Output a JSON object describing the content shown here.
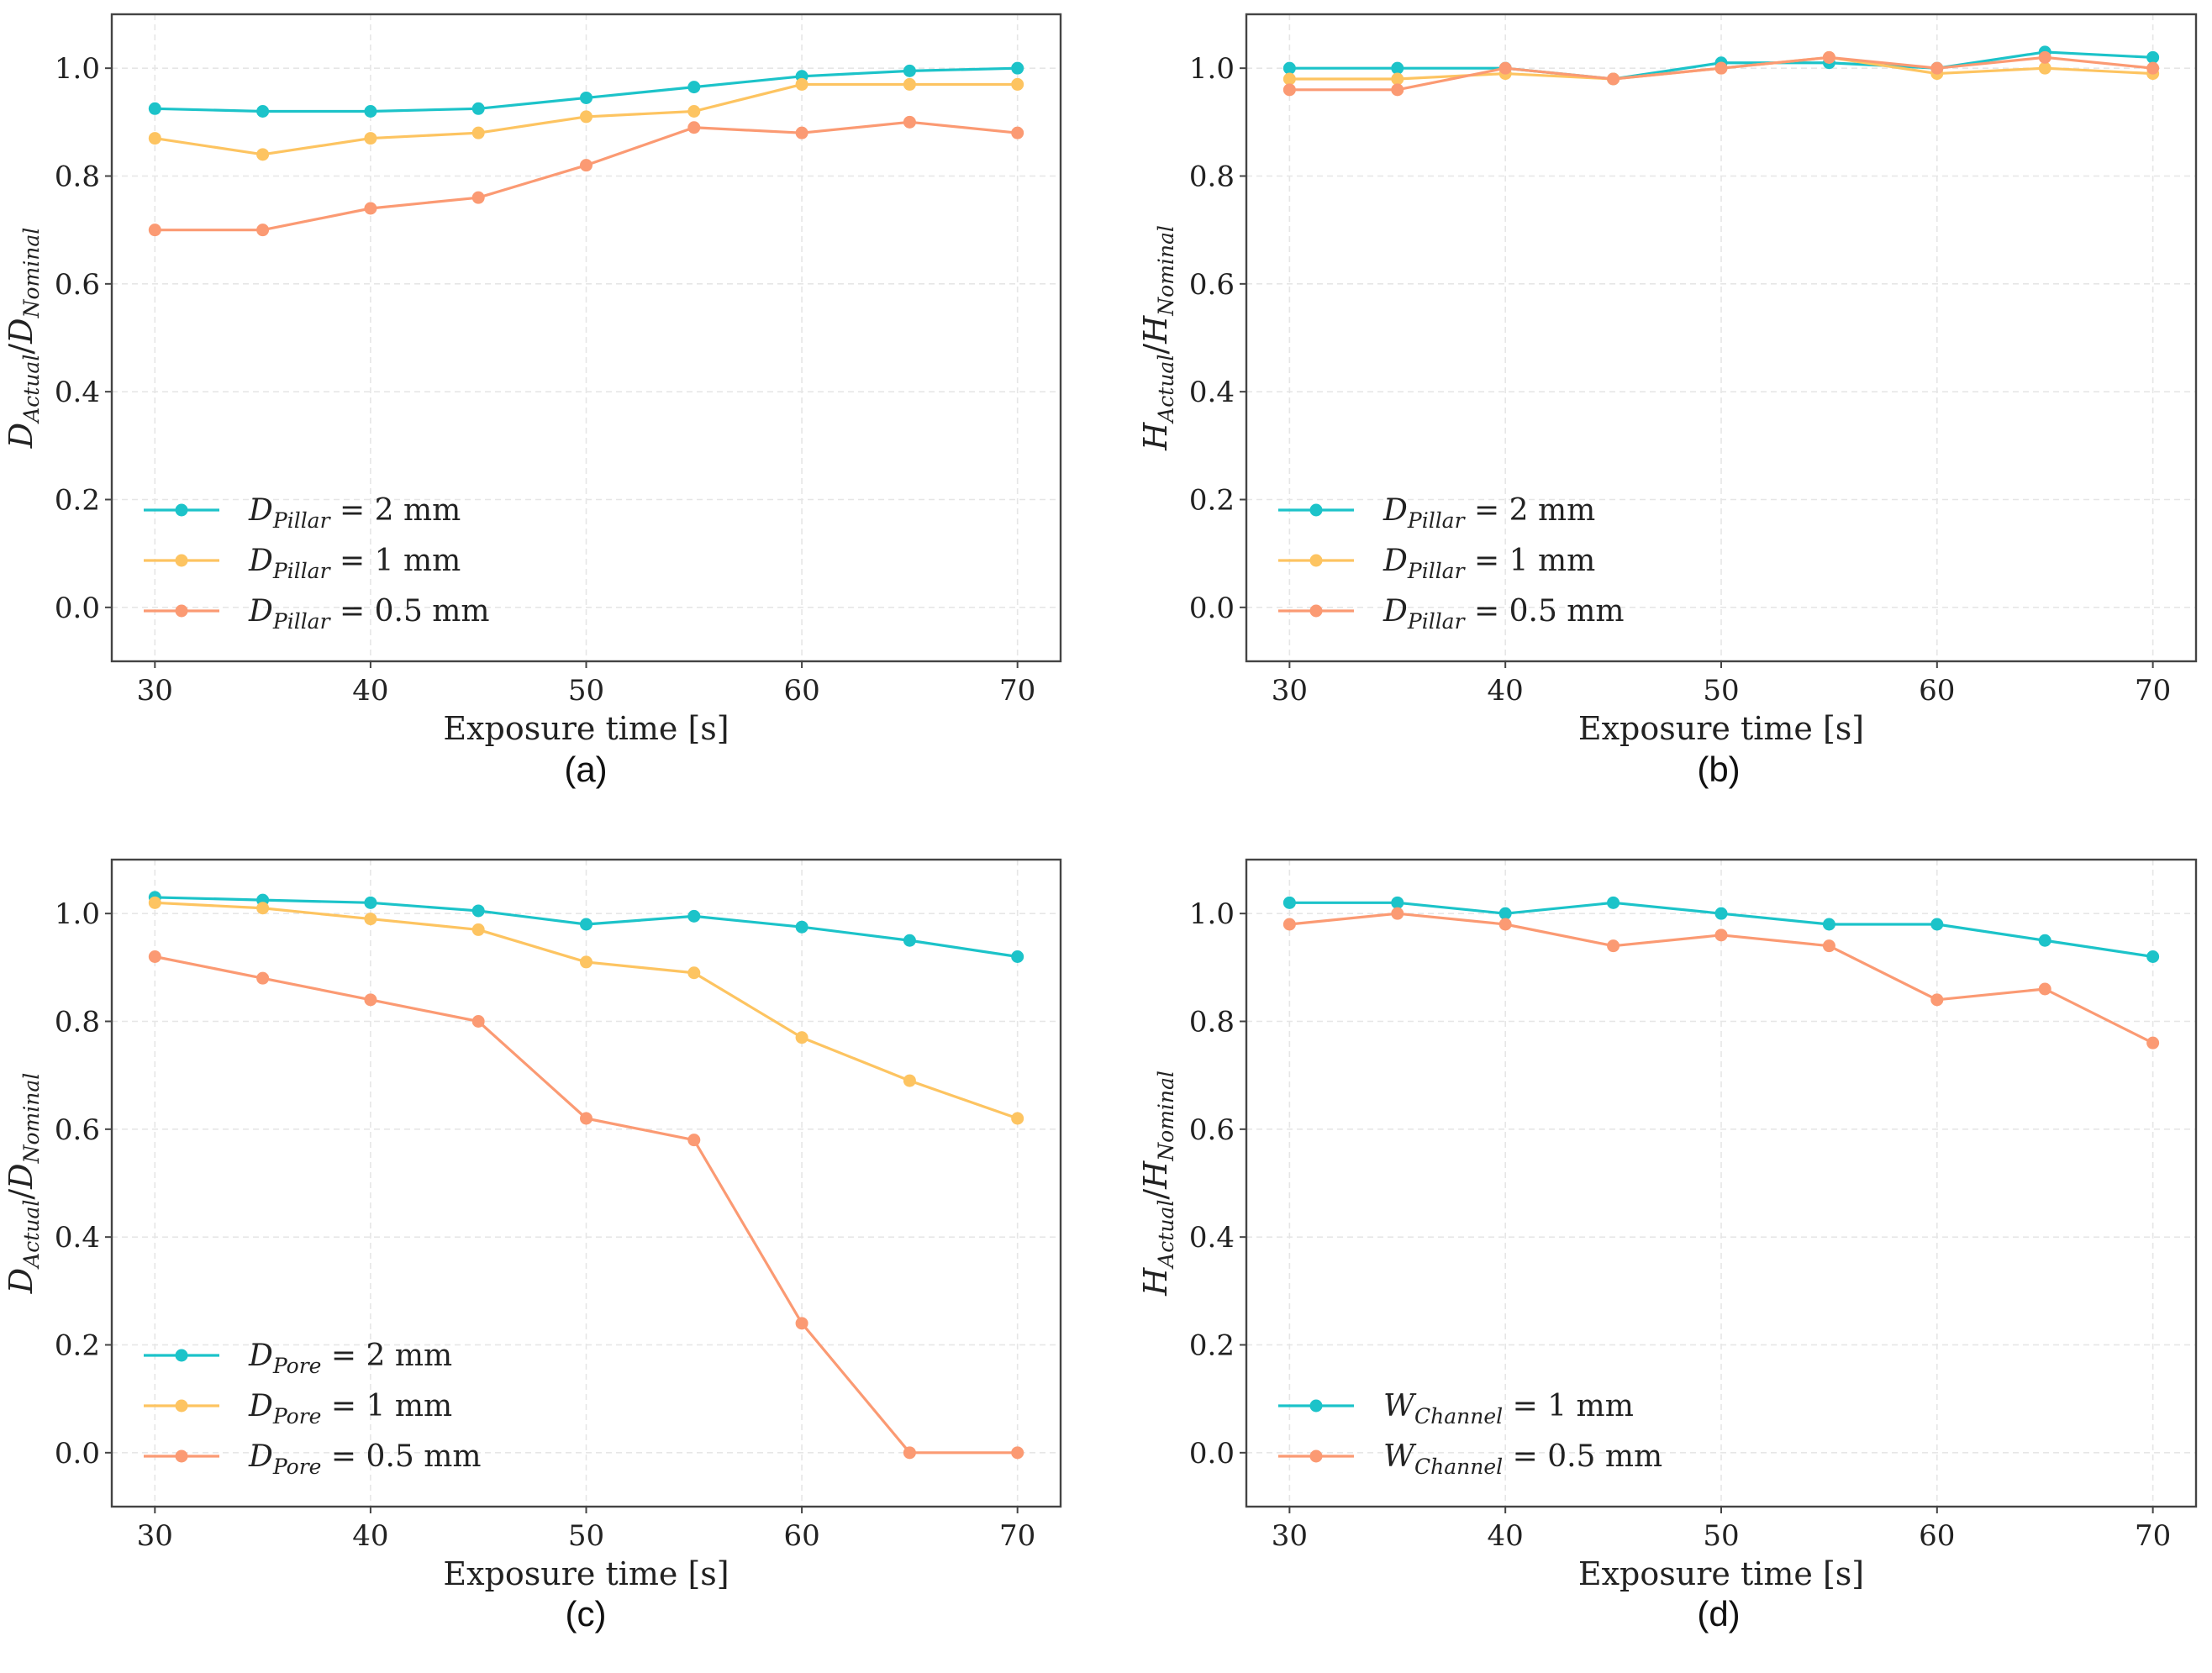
{
  "figure": {
    "colors": {
      "cyan": "#1cc3c9",
      "yellow": "#fdc461",
      "orange": "#fb9a73"
    }
  },
  "chart_data": [
    {
      "type": "line",
      "panel_label": "(a)",
      "xlabel": "Exposure time [s]",
      "ylabel": {
        "num": "D",
        "num_sub": "Actual",
        "den": "D",
        "den_sub": "Nominal"
      },
      "xlim": [
        28,
        72
      ],
      "ylim": [
        -0.1,
        1.1
      ],
      "xticks": [
        30,
        40,
        50,
        60,
        70
      ],
      "yticks": [
        0.0,
        0.2,
        0.4,
        0.6,
        0.8,
        1.0
      ],
      "ytick_labels": [
        "0.0",
        "0.2",
        "0.4",
        "0.6",
        "0.8",
        "1.0"
      ],
      "grid": true,
      "legend": "lower-left",
      "x": [
        30,
        35,
        40,
        45,
        50,
        55,
        60,
        65,
        70
      ],
      "series": [
        {
          "name": "D",
          "name_sub": "Pillar",
          "name_suffix": "= 2 mm",
          "color": "#1cc3c9",
          "values": [
            0.925,
            0.92,
            0.92,
            0.925,
            0.945,
            0.965,
            0.985,
            0.995,
            1.0
          ]
        },
        {
          "name": "D",
          "name_sub": "Pillar",
          "name_suffix": "= 1 mm",
          "color": "#fdc461",
          "values": [
            0.87,
            0.84,
            0.87,
            0.88,
            0.91,
            0.92,
            0.97,
            0.97,
            0.97
          ]
        },
        {
          "name": "D",
          "name_sub": "Pillar",
          "name_suffix": "= 0.5 mm",
          "color": "#fb9a73",
          "values": [
            0.7,
            0.7,
            0.74,
            0.76,
            0.82,
            0.89,
            0.88,
            0.9,
            0.88
          ]
        }
      ]
    },
    {
      "type": "line",
      "panel_label": "(b)",
      "xlabel": "Exposure time [s]",
      "ylabel": {
        "num": "H",
        "num_sub": "Actual",
        "den": "H",
        "den_sub": "Nominal"
      },
      "xlim": [
        28,
        72
      ],
      "ylim": [
        -0.1,
        1.1
      ],
      "xticks": [
        30,
        40,
        50,
        60,
        70
      ],
      "yticks": [
        0.0,
        0.2,
        0.4,
        0.6,
        0.8,
        1.0
      ],
      "ytick_labels": [
        "0.0",
        "0.2",
        "0.4",
        "0.6",
        "0.8",
        "1.0"
      ],
      "grid": true,
      "legend": "lower-left",
      "x": [
        30,
        35,
        40,
        45,
        50,
        55,
        60,
        65,
        70
      ],
      "series": [
        {
          "name": "D",
          "name_sub": "Pillar",
          "name_suffix": "= 2 mm",
          "color": "#1cc3c9",
          "values": [
            1.0,
            1.0,
            1.0,
            0.98,
            1.01,
            1.01,
            1.0,
            1.03,
            1.02
          ]
        },
        {
          "name": "D",
          "name_sub": "Pillar",
          "name_suffix": "= 1 mm",
          "color": "#fdc461",
          "values": [
            0.98,
            0.98,
            0.99,
            0.98,
            1.0,
            1.02,
            0.99,
            1.0,
            0.99
          ]
        },
        {
          "name": "D",
          "name_sub": "Pillar",
          "name_suffix": "= 0.5 mm",
          "color": "#fb9a73",
          "values": [
            0.96,
            0.96,
            1.0,
            0.98,
            1.0,
            1.02,
            1.0,
            1.02,
            1.0
          ]
        }
      ]
    },
    {
      "type": "line",
      "panel_label": "(c)",
      "xlabel": "Exposure time [s]",
      "ylabel": {
        "num": "D",
        "num_sub": "Actual",
        "den": "D",
        "den_sub": "Nominal"
      },
      "xlim": [
        28,
        72
      ],
      "ylim": [
        -0.1,
        1.1
      ],
      "xticks": [
        30,
        40,
        50,
        60,
        70
      ],
      "yticks": [
        0.0,
        0.2,
        0.4,
        0.6,
        0.8,
        1.0
      ],
      "ytick_labels": [
        "0.0",
        "0.2",
        "0.4",
        "0.6",
        "0.8",
        "1.0"
      ],
      "grid": true,
      "legend": "lower-left",
      "x": [
        30,
        35,
        40,
        45,
        50,
        55,
        60,
        65,
        70
      ],
      "series": [
        {
          "name": "D",
          "name_sub": "Pore",
          "name_suffix": "= 2 mm",
          "color": "#1cc3c9",
          "values": [
            1.03,
            1.025,
            1.02,
            1.005,
            0.98,
            0.995,
            0.975,
            0.95,
            0.92
          ]
        },
        {
          "name": "D",
          "name_sub": "Pore",
          "name_suffix": "= 1 mm",
          "color": "#fdc461",
          "values": [
            1.02,
            1.01,
            0.99,
            0.97,
            0.91,
            0.89,
            0.77,
            0.69,
            0.62
          ]
        },
        {
          "name": "D",
          "name_sub": "Pore",
          "name_suffix": "= 0.5 mm",
          "color": "#fb9a73",
          "values": [
            0.92,
            0.88,
            0.84,
            0.8,
            0.62,
            0.58,
            0.24,
            0.0,
            0.0
          ]
        }
      ]
    },
    {
      "type": "line",
      "panel_label": "(d)",
      "xlabel": "Exposure time [s]",
      "ylabel": {
        "num": "H",
        "num_sub": "Actual",
        "den": "H",
        "den_sub": "Nominal"
      },
      "xlim": [
        28,
        72
      ],
      "ylim": [
        -0.1,
        1.1
      ],
      "xticks": [
        30,
        40,
        50,
        60,
        70
      ],
      "yticks": [
        0.0,
        0.2,
        0.4,
        0.6,
        0.8,
        1.0
      ],
      "ytick_labels": [
        "0.0",
        "0.2",
        "0.4",
        "0.6",
        "0.8",
        "1.0"
      ],
      "grid": true,
      "legend": "lower-left",
      "x": [
        30,
        35,
        40,
        45,
        50,
        55,
        60,
        65,
        70
      ],
      "series": [
        {
          "name": "W",
          "name_sub": "Channel",
          "name_suffix": "= 1 mm",
          "color": "#1cc3c9",
          "values": [
            1.02,
            1.02,
            1.0,
            1.02,
            1.0,
            0.98,
            0.98,
            0.95,
            0.92
          ]
        },
        {
          "name": "W",
          "name_sub": "Channel",
          "name_suffix": "= 0.5 mm",
          "color": "#fb9a73",
          "values": [
            0.98,
            1.0,
            0.98,
            0.94,
            0.96,
            0.94,
            0.84,
            0.86,
            0.76
          ]
        }
      ]
    }
  ]
}
